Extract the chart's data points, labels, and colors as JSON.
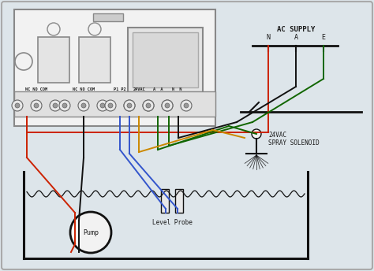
{
  "bg_color": "#dde5ea",
  "controller_bg": "#f2f2f2",
  "controller_border": "#888888",
  "tc": "#1a1a1a",
  "wire_red": "#cc2200",
  "wire_black": "#111111",
  "wire_blue": "#3355cc",
  "wire_green": "#116600",
  "wire_orange": "#cc8800",
  "pump_label": "Pump",
  "level_probe_label": "Level Probe",
  "solenoid_label": "24VAC\nSPRAY SOLENOID",
  "ac_supply_label": "AC SUPPLY"
}
